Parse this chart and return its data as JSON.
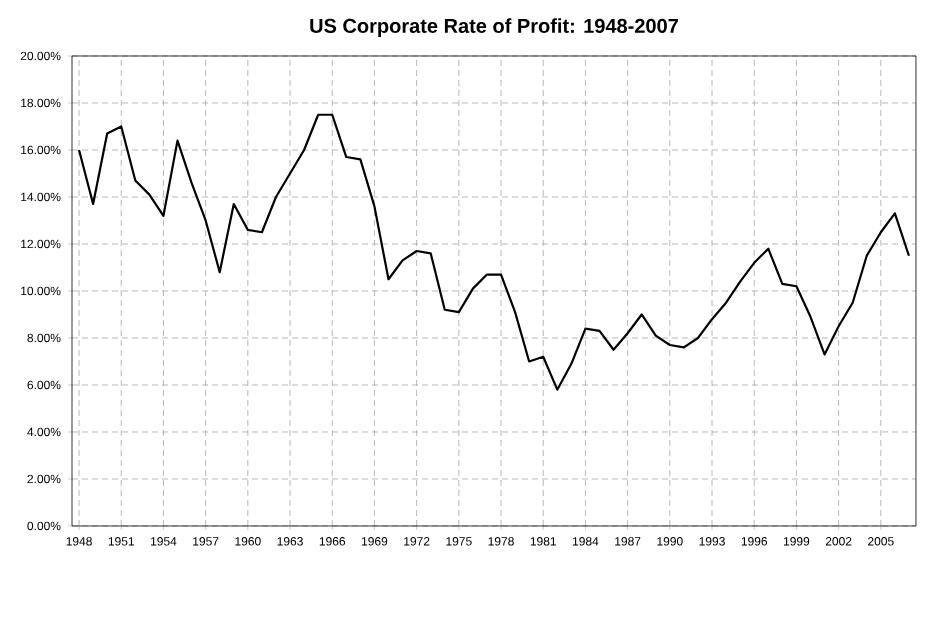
{
  "chart_data": {
    "type": "line",
    "title": "US Corporate Rate of Profit: 1948-2007",
    "x": [
      1948,
      1949,
      1950,
      1951,
      1952,
      1953,
      1954,
      1955,
      1956,
      1957,
      1958,
      1959,
      1960,
      1961,
      1962,
      1963,
      1964,
      1965,
      1966,
      1967,
      1968,
      1969,
      1970,
      1971,
      1972,
      1973,
      1974,
      1975,
      1976,
      1977,
      1978,
      1979,
      1980,
      1981,
      1982,
      1983,
      1984,
      1985,
      1986,
      1987,
      1988,
      1989,
      1990,
      1991,
      1992,
      1993,
      1994,
      1995,
      1996,
      1997,
      1998,
      1999,
      2000,
      2001,
      2002,
      2003,
      2004,
      2005,
      2006,
      2007
    ],
    "series": [
      {
        "color": "#000000",
        "values": [
          16.0,
          13.7,
          16.7,
          17.0,
          14.7,
          14.1,
          13.2,
          16.4,
          14.6,
          13.0,
          10.8,
          13.7,
          12.6,
          12.5,
          14.0,
          15.0,
          16.0,
          17.5,
          17.5,
          15.7,
          15.6,
          13.6,
          10.5,
          11.3,
          11.7,
          11.6,
          9.2,
          9.1,
          10.1,
          10.7,
          10.7,
          9.1,
          7.0,
          7.2,
          5.8,
          6.9,
          8.4,
          8.3,
          7.5,
          8.2,
          9.0,
          8.1,
          7.7,
          7.6,
          8.0,
          8.8,
          9.5,
          10.4,
          11.2,
          11.8,
          10.3,
          10.2,
          8.9,
          7.3,
          8.5,
          9.5,
          11.5,
          12.5,
          13.3,
          11.5
        ]
      }
    ],
    "xlim": [
      1947.5,
      2007.5
    ],
    "xticks": [
      1948,
      1951,
      1954,
      1957,
      1960,
      1963,
      1966,
      1969,
      1972,
      1975,
      1978,
      1981,
      1984,
      1987,
      1990,
      1993,
      1996,
      1999,
      2002,
      2005
    ],
    "ylim": [
      0,
      20
    ],
    "yticks": [
      {
        "value": 0,
        "label": "0.00%"
      },
      {
        "value": 2,
        "label": "2.00%"
      },
      {
        "value": 4,
        "label": "4.00%"
      },
      {
        "value": 6,
        "label": "6.00%"
      },
      {
        "value": 8,
        "label": "8.00%"
      },
      {
        "value": 10,
        "label": "10.00%"
      },
      {
        "value": 12,
        "label": "12.00%"
      },
      {
        "value": 14,
        "label": "14.00%"
      },
      {
        "value": 16,
        "label": "16.00%"
      },
      {
        "value": 18,
        "label": "18.00%"
      },
      {
        "value": 20,
        "label": "20.00%"
      }
    ],
    "grid": true,
    "marker": "none",
    "line_style": "solid"
  }
}
